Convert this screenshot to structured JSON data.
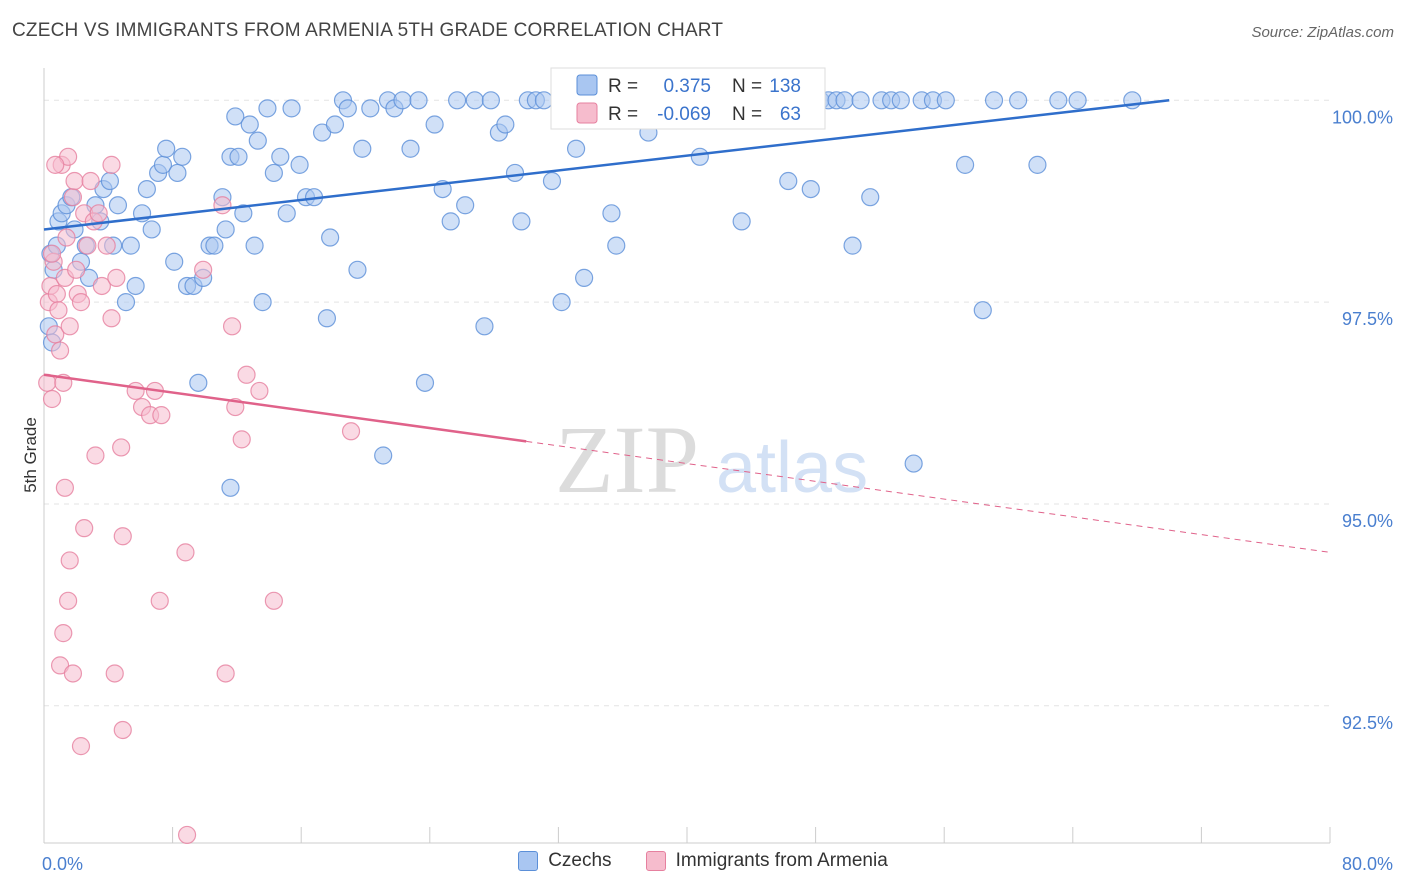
{
  "title": "CZECH VS IMMIGRANTS FROM ARMENIA 5TH GRADE CORRELATION CHART",
  "source": "Source: ZipAtlas.com",
  "colors": {
    "blue_fill": "#a9c6f1",
    "blue_stroke": "#5b8fd8",
    "blue_line": "#2f6ecb",
    "pink_fill": "#f6bccd",
    "pink_stroke": "#e6809f",
    "pink_line": "#e0628a",
    "axis_text": "#4a7fcf",
    "grid": "#e3e3e3"
  },
  "stats": {
    "czech": {
      "r_label": "R =",
      "r_value": "0.375",
      "n_label": "N =",
      "n_value": "138"
    },
    "armenia": {
      "r_label": "R =",
      "r_value": "-0.069",
      "n_label": "N =",
      "n_value": "63"
    }
  },
  "watermark": {
    "zip": "ZIP",
    "atlas": "atlas"
  },
  "chart_data": {
    "type": "scatter",
    "title": "CZECH VS IMMIGRANTS FROM ARMENIA 5TH GRADE CORRELATION CHART",
    "xlabel": "",
    "ylabel": "5th Grade",
    "xlim": [
      0,
      80
    ],
    "ylim": [
      90.8,
      100.4
    ],
    "x_tick_labels": [
      "0.0%",
      "80.0%"
    ],
    "y_ticks": [
      100.0,
      97.5,
      95.0,
      92.5
    ],
    "y_tick_labels": [
      "100.0%",
      "97.5%",
      "95.0%",
      "92.5%"
    ],
    "grid": "horizontal dashed",
    "legend_placement": "bottom",
    "series": [
      {
        "name": "Czechs",
        "color": "#a9c6f1",
        "trend": {
          "x": [
            0,
            70
          ],
          "y": [
            98.4,
            100.0
          ],
          "dashed_from": null
        },
        "points": [
          [
            0.4,
            98.1
          ],
          [
            0.6,
            97.9
          ],
          [
            0.3,
            97.2
          ],
          [
            0.5,
            97.0
          ],
          [
            0.9,
            98.5
          ],
          [
            1.1,
            98.6
          ],
          [
            1.4,
            98.7
          ],
          [
            1.7,
            98.8
          ],
          [
            1.9,
            98.4
          ],
          [
            2.3,
            98.0
          ],
          [
            2.6,
            98.2
          ],
          [
            2.8,
            97.8
          ],
          [
            3.2,
            98.7
          ],
          [
            3.5,
            98.5
          ],
          [
            3.7,
            98.9
          ],
          [
            4.1,
            99.0
          ],
          [
            4.3,
            98.2
          ],
          [
            4.6,
            98.7
          ],
          [
            5.1,
            97.5
          ],
          [
            5.4,
            98.2
          ],
          [
            5.7,
            97.7
          ],
          [
            6.1,
            98.6
          ],
          [
            6.4,
            98.9
          ],
          [
            6.7,
            98.4
          ],
          [
            7.1,
            99.1
          ],
          [
            7.4,
            99.2
          ],
          [
            7.6,
            99.4
          ],
          [
            8.1,
            98.0
          ],
          [
            8.3,
            99.1
          ],
          [
            8.6,
            99.3
          ],
          [
            8.9,
            97.7
          ],
          [
            9.3,
            97.7
          ],
          [
            9.6,
            96.5
          ],
          [
            9.9,
            97.8
          ],
          [
            10.3,
            98.2
          ],
          [
            10.6,
            98.2
          ],
          [
            11.1,
            98.8
          ],
          [
            11.3,
            98.4
          ],
          [
            11.6,
            99.3
          ],
          [
            11.9,
            99.8
          ],
          [
            12.1,
            99.3
          ],
          [
            12.4,
            98.6
          ],
          [
            12.8,
            99.7
          ],
          [
            13.1,
            98.2
          ],
          [
            13.3,
            99.5
          ],
          [
            13.6,
            97.5
          ],
          [
            13.9,
            99.9
          ],
          [
            14.3,
            99.1
          ],
          [
            14.7,
            99.3
          ],
          [
            15.1,
            98.6
          ],
          [
            15.4,
            99.9
          ],
          [
            15.9,
            99.2
          ],
          [
            16.3,
            98.8
          ],
          [
            16.8,
            98.8
          ],
          [
            17.3,
            99.6
          ],
          [
            17.6,
            97.3
          ],
          [
            17.8,
            98.3
          ],
          [
            18.1,
            99.7
          ],
          [
            18.6,
            100.0
          ],
          [
            18.9,
            99.9
          ],
          [
            19.5,
            97.9
          ],
          [
            19.8,
            99.4
          ],
          [
            20.3,
            99.9
          ],
          [
            21.1,
            95.6
          ],
          [
            21.4,
            100.0
          ],
          [
            21.8,
            99.9
          ],
          [
            22.3,
            100.0
          ],
          [
            22.8,
            99.4
          ],
          [
            23.3,
            100.0
          ],
          [
            23.7,
            96.5
          ],
          [
            24.3,
            99.7
          ],
          [
            24.8,
            98.9
          ],
          [
            25.3,
            98.5
          ],
          [
            25.7,
            100.0
          ],
          [
            26.2,
            98.7
          ],
          [
            26.8,
            100.0
          ],
          [
            27.4,
            97.2
          ],
          [
            27.8,
            100.0
          ],
          [
            28.3,
            99.6
          ],
          [
            28.7,
            99.7
          ],
          [
            29.3,
            99.1
          ],
          [
            29.7,
            98.5
          ],
          [
            30.1,
            100.0
          ],
          [
            30.6,
            100.0
          ],
          [
            31.1,
            100.0
          ],
          [
            31.6,
            99.0
          ],
          [
            32.2,
            97.5
          ],
          [
            32.7,
            100.0
          ],
          [
            33.1,
            99.4
          ],
          [
            33.6,
            97.8
          ],
          [
            34.2,
            100.0
          ],
          [
            34.8,
            100.0
          ],
          [
            35.3,
            98.6
          ],
          [
            35.6,
            98.2
          ],
          [
            36.1,
            100.0
          ],
          [
            36.6,
            100.0
          ],
          [
            37.1,
            100.0
          ],
          [
            37.6,
            99.6
          ],
          [
            38.1,
            100.0
          ],
          [
            38.7,
            100.0
          ],
          [
            39.1,
            100.0
          ],
          [
            39.6,
            100.0
          ],
          [
            40.3,
            100.0
          ],
          [
            40.8,
            99.3
          ],
          [
            41.3,
            100.0
          ],
          [
            41.7,
            100.0
          ],
          [
            42.3,
            100.0
          ],
          [
            42.8,
            100.0
          ],
          [
            43.4,
            98.5
          ],
          [
            44.1,
            100.0
          ],
          [
            44.7,
            100.0
          ],
          [
            45.3,
            100.0
          ],
          [
            45.8,
            100.0
          ],
          [
            46.3,
            99.0
          ],
          [
            46.8,
            100.0
          ],
          [
            47.3,
            100.0
          ],
          [
            47.7,
            98.9
          ],
          [
            48.3,
            100.0
          ],
          [
            48.8,
            100.0
          ],
          [
            49.3,
            100.0
          ],
          [
            49.8,
            100.0
          ],
          [
            50.3,
            98.2
          ],
          [
            50.8,
            100.0
          ],
          [
            51.4,
            98.8
          ],
          [
            52.1,
            100.0
          ],
          [
            52.7,
            100.0
          ],
          [
            53.3,
            100.0
          ],
          [
            54.1,
            95.5
          ],
          [
            54.6,
            100.0
          ],
          [
            55.3,
            100.0
          ],
          [
            56.1,
            100.0
          ],
          [
            57.3,
            99.2
          ],
          [
            58.4,
            97.4
          ],
          [
            59.1,
            100.0
          ],
          [
            60.6,
            100.0
          ],
          [
            61.8,
            99.2
          ],
          [
            63.1,
            100.0
          ],
          [
            64.3,
            100.0
          ],
          [
            67.7,
            100.0
          ],
          [
            11.6,
            95.2
          ],
          [
            0.8,
            98.2
          ]
        ]
      },
      {
        "name": "Immigrants from Armenia",
        "color": "#f6bccd",
        "trend": {
          "x": [
            0,
            80
          ],
          "y": [
            96.6,
            94.4
          ],
          "dashed_from": 30
        },
        "points": [
          [
            0.2,
            96.5
          ],
          [
            0.3,
            97.5
          ],
          [
            0.4,
            97.7
          ],
          [
            0.5,
            96.3
          ],
          [
            0.6,
            98.0
          ],
          [
            0.7,
            97.1
          ],
          [
            0.8,
            97.6
          ],
          [
            0.9,
            97.4
          ],
          [
            1.0,
            96.9
          ],
          [
            1.1,
            99.2
          ],
          [
            1.2,
            96.5
          ],
          [
            1.3,
            97.8
          ],
          [
            1.4,
            98.3
          ],
          [
            1.5,
            99.3
          ],
          [
            1.6,
            97.2
          ],
          [
            1.8,
            98.8
          ],
          [
            1.9,
            99.0
          ],
          [
            2.0,
            97.9
          ],
          [
            2.1,
            97.6
          ],
          [
            2.3,
            97.5
          ],
          [
            2.5,
            98.6
          ],
          [
            2.7,
            98.2
          ],
          [
            2.9,
            99.0
          ],
          [
            3.1,
            98.5
          ],
          [
            3.4,
            98.6
          ],
          [
            3.6,
            97.7
          ],
          [
            3.9,
            98.2
          ],
          [
            4.2,
            97.3
          ],
          [
            4.5,
            97.8
          ],
          [
            5.7,
            96.4
          ],
          [
            6.1,
            96.2
          ],
          [
            6.6,
            96.1
          ],
          [
            6.9,
            96.4
          ],
          [
            7.3,
            96.1
          ],
          [
            1.3,
            95.2
          ],
          [
            1.6,
            94.3
          ],
          [
            2.5,
            94.7
          ],
          [
            3.2,
            95.6
          ],
          [
            4.8,
            95.7
          ],
          [
            4.9,
            94.6
          ],
          [
            1.5,
            93.8
          ],
          [
            1.2,
            93.4
          ],
          [
            1.0,
            93.0
          ],
          [
            1.8,
            92.9
          ],
          [
            4.4,
            92.9
          ],
          [
            2.3,
            92.0
          ],
          [
            4.9,
            92.2
          ],
          [
            8.9,
            90.9
          ],
          [
            7.2,
            93.8
          ],
          [
            8.8,
            94.4
          ],
          [
            11.3,
            92.9
          ],
          [
            14.3,
            93.8
          ],
          [
            11.7,
            97.2
          ],
          [
            11.9,
            96.2
          ],
          [
            12.6,
            96.6
          ],
          [
            12.3,
            95.8
          ],
          [
            13.4,
            96.4
          ],
          [
            19.1,
            95.9
          ],
          [
            9.9,
            97.9
          ],
          [
            11.1,
            98.7
          ],
          [
            0.5,
            98.1
          ],
          [
            0.7,
            99.2
          ],
          [
            4.2,
            99.2
          ]
        ]
      }
    ]
  },
  "legend": [
    {
      "label": "Czechs"
    },
    {
      "label": "Immigrants from Armenia"
    }
  ]
}
